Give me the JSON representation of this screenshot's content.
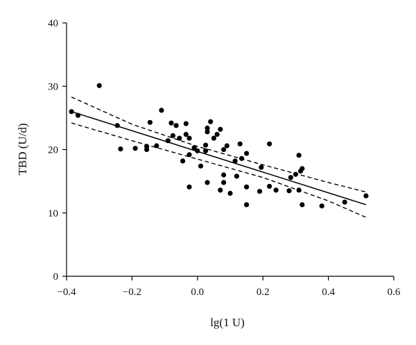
{
  "chart_data": {
    "type": "scatter",
    "xlabel": "lg(1 U)",
    "ylabel": "TBD (U/d)",
    "xlim": [
      -0.4,
      0.6
    ],
    "ylim": [
      0,
      40
    ],
    "x_ticks": [
      "−0.4",
      "−0.2",
      "0.0",
      "0.2",
      "0.4",
      "0.6"
    ],
    "x_tick_values": [
      -0.4,
      -0.2,
      0.0,
      0.2,
      0.4,
      0.6
    ],
    "y_ticks": [
      "0",
      "10",
      "20",
      "30",
      "40"
    ],
    "y_tick_values": [
      0,
      10,
      20,
      30,
      40
    ],
    "grid": false,
    "colors": {
      "points": "#000000",
      "lines": "#000000",
      "axes": "#000000"
    },
    "points": [
      {
        "x": -0.385,
        "y": 26.0
      },
      {
        "x": -0.365,
        "y": 25.4
      },
      {
        "x": -0.3,
        "y": 30.1
      },
      {
        "x": -0.245,
        "y": 23.8
      },
      {
        "x": -0.235,
        "y": 20.1
      },
      {
        "x": -0.19,
        "y": 20.2
      },
      {
        "x": -0.155,
        "y": 20.0
      },
      {
        "x": -0.155,
        "y": 20.5
      },
      {
        "x": -0.145,
        "y": 24.3
      },
      {
        "x": -0.125,
        "y": 20.6
      },
      {
        "x": -0.11,
        "y": 26.2
      },
      {
        "x": -0.09,
        "y": 21.4
      },
      {
        "x": -0.08,
        "y": 24.2
      },
      {
        "x": -0.075,
        "y": 22.2
      },
      {
        "x": -0.065,
        "y": 23.8
      },
      {
        "x": -0.055,
        "y": 21.8
      },
      {
        "x": -0.045,
        "y": 18.2
      },
      {
        "x": -0.035,
        "y": 22.4
      },
      {
        "x": -0.035,
        "y": 24.1
      },
      {
        "x": -0.025,
        "y": 21.8
      },
      {
        "x": -0.025,
        "y": 19.2
      },
      {
        "x": -0.025,
        "y": 14.1
      },
      {
        "x": -0.01,
        "y": 20.3
      },
      {
        "x": 0.0,
        "y": 19.8
      },
      {
        "x": 0.01,
        "y": 17.4
      },
      {
        "x": 0.025,
        "y": 19.8
      },
      {
        "x": 0.025,
        "y": 20.7
      },
      {
        "x": 0.03,
        "y": 23.4
      },
      {
        "x": 0.03,
        "y": 22.8
      },
      {
        "x": 0.03,
        "y": 14.8
      },
      {
        "x": 0.04,
        "y": 24.4
      },
      {
        "x": 0.05,
        "y": 21.8
      },
      {
        "x": 0.06,
        "y": 22.4
      },
      {
        "x": 0.07,
        "y": 23.2
      },
      {
        "x": 0.07,
        "y": 13.6
      },
      {
        "x": 0.08,
        "y": 20.0
      },
      {
        "x": 0.08,
        "y": 16.0
      },
      {
        "x": 0.08,
        "y": 14.8
      },
      {
        "x": 0.09,
        "y": 20.6
      },
      {
        "x": 0.1,
        "y": 13.1
      },
      {
        "x": 0.115,
        "y": 18.2
      },
      {
        "x": 0.12,
        "y": 15.8
      },
      {
        "x": 0.13,
        "y": 20.9
      },
      {
        "x": 0.135,
        "y": 18.6
      },
      {
        "x": 0.15,
        "y": 19.4
      },
      {
        "x": 0.15,
        "y": 14.1
      },
      {
        "x": 0.15,
        "y": 11.3
      },
      {
        "x": 0.19,
        "y": 13.4
      },
      {
        "x": 0.195,
        "y": 17.2
      },
      {
        "x": 0.22,
        "y": 20.9
      },
      {
        "x": 0.22,
        "y": 14.2
      },
      {
        "x": 0.24,
        "y": 13.6
      },
      {
        "x": 0.28,
        "y": 13.5
      },
      {
        "x": 0.285,
        "y": 15.6
      },
      {
        "x": 0.3,
        "y": 16.1
      },
      {
        "x": 0.31,
        "y": 19.1
      },
      {
        "x": 0.31,
        "y": 13.6
      },
      {
        "x": 0.315,
        "y": 16.6
      },
      {
        "x": 0.32,
        "y": 17.0
      },
      {
        "x": 0.32,
        "y": 11.3
      },
      {
        "x": 0.38,
        "y": 11.1
      },
      {
        "x": 0.45,
        "y": 11.7
      },
      {
        "x": 0.515,
        "y": 12.7
      }
    ],
    "regression_line": {
      "x": [
        -0.385,
        0.515
      ],
      "y": [
        26.0,
        11.3
      ]
    },
    "confidence_upper": {
      "x": [
        -0.385,
        -0.2,
        0.0,
        0.2,
        0.4,
        0.515
      ],
      "y": [
        28.3,
        24.0,
        20.5,
        17.6,
        14.8,
        13.3
      ]
    },
    "confidence_lower": {
      "x": [
        -0.385,
        -0.2,
        0.0,
        0.2,
        0.4,
        0.515
      ],
      "y": [
        24.2,
        21.4,
        18.5,
        15.6,
        11.9,
        9.3
      ]
    }
  }
}
